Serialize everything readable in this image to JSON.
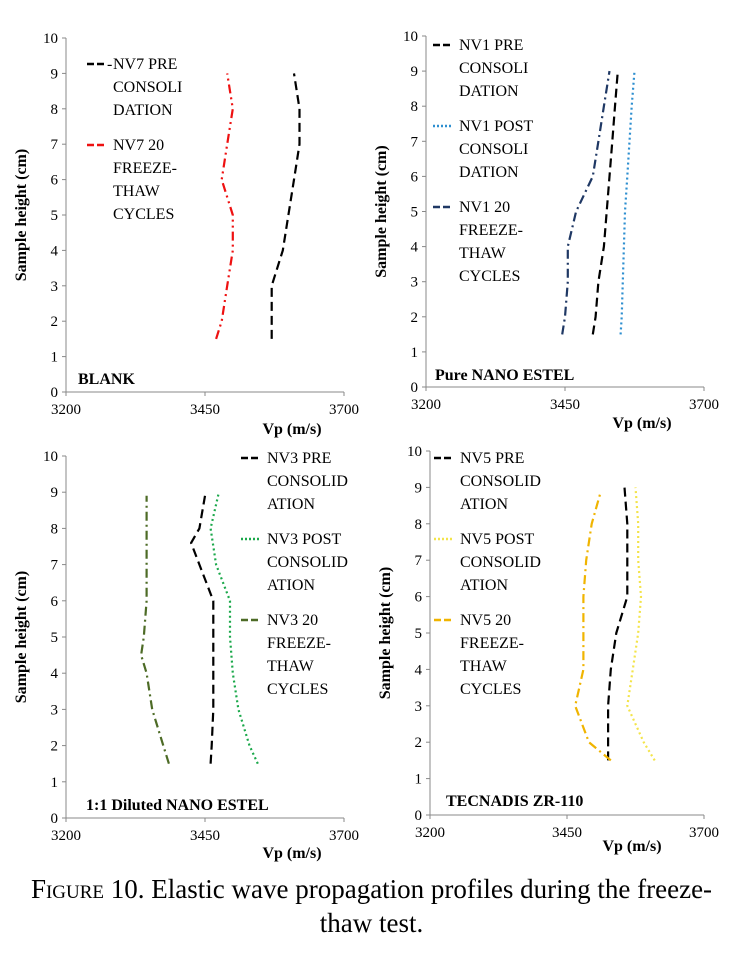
{
  "caption": {
    "figure_label": "Figure 10.",
    "line1_text": "Elastic wave propagation profiles during the freeze-",
    "line2_text": "thaw test."
  },
  "chart_data": [
    {
      "type": "line",
      "panel_label": "BLANK",
      "xlabel": "Vp (m/s)",
      "ylabel": "Sample height (cm)",
      "xlim": [
        3200,
        3700
      ],
      "xticks": [
        "3200",
        "3450",
        "3700"
      ],
      "ylim": [
        0,
        10
      ],
      "yticks": [
        "0",
        "1",
        "2",
        "3",
        "4",
        "5",
        "6",
        "7",
        "8",
        "9",
        "10"
      ],
      "legend_position": "top-left",
      "series": [
        {
          "name_lines": [
            "NV7 PRE",
            "CONSOLI",
            "DATION"
          ],
          "legend_prefix": "-",
          "color": "#000000",
          "dash": "9,5",
          "y": [
            1.5,
            2,
            3,
            4,
            5,
            6,
            7,
            8,
            9
          ],
          "x": [
            3570,
            3570,
            3570,
            3590,
            3600,
            3610,
            3620,
            3620,
            3610
          ]
        },
        {
          "name_lines": [
            "NV7 20",
            "FREEZE-",
            "THAW",
            "CYCLES"
          ],
          "color": "#ee1111",
          "dash": "9,4,2,4,2,4",
          "y": [
            1.5,
            2,
            3,
            4,
            5,
            6,
            7,
            8,
            9
          ],
          "x": [
            3470,
            3480,
            3490,
            3500,
            3500,
            3480,
            3490,
            3500,
            3490
          ]
        }
      ]
    },
    {
      "type": "line",
      "panel_label": "Pure NANO ESTEL",
      "xlabel": "Vp (m/s)",
      "ylabel": "Sample height (cm)",
      "xlim": [
        3200,
        3700
      ],
      "xticks": [
        "3200",
        "3450",
        "3700"
      ],
      "ylim": [
        0,
        10
      ],
      "yticks": [
        "0",
        "1",
        "2",
        "3",
        "4",
        "5",
        "6",
        "7",
        "8",
        "9",
        "10"
      ],
      "legend_position": "top-left",
      "series": [
        {
          "name_lines": [
            "NV1 PRE",
            "CONSOLI",
            "DATION"
          ],
          "color": "#000000",
          "dash": "9,5",
          "y": [
            1.5,
            2,
            3,
            4,
            5,
            6,
            7,
            8,
            9
          ],
          "x": [
            3500,
            3505,
            3510,
            3520,
            3525,
            3530,
            3535,
            3540,
            3545
          ]
        },
        {
          "name_lines": [
            "NV1 POST",
            "CONSOLI",
            "DATION"
          ],
          "color": "#2e8fd0",
          "dash": "2,3",
          "y": [
            1.5,
            2,
            3,
            4,
            5,
            6,
            7,
            8,
            9
          ],
          "x": [
            3550,
            3552,
            3554,
            3556,
            3558,
            3562,
            3566,
            3570,
            3575
          ]
        },
        {
          "name_lines": [
            "NV1 20",
            "FREEZE-",
            "THAW",
            "CYCLES"
          ],
          "color": "#1f3864",
          "dash": "9,4,2,4",
          "y": [
            1.5,
            2,
            3,
            4,
            5,
            6,
            7,
            8,
            9
          ],
          "x": [
            3445,
            3450,
            3455,
            3455,
            3470,
            3500,
            3510,
            3520,
            3530
          ]
        }
      ]
    },
    {
      "type": "line",
      "panel_label": "1:1 Diluted NANO ESTEL",
      "xlabel": "Vp (m/s)",
      "ylabel": "Sample height (cm)",
      "xlim": [
        3200,
        3700
      ],
      "xticks": [
        "3200",
        "3450",
        "3700"
      ],
      "ylim": [
        0,
        10
      ],
      "yticks": [
        "0",
        "1",
        "2",
        "3",
        "4",
        "5",
        "6",
        "7",
        "8",
        "9",
        "10"
      ],
      "legend_position": "top-right",
      "series": [
        {
          "name_lines": [
            "NV3 PRE",
            "CONSOLID",
            "ATION"
          ],
          "color": "#000000",
          "dash": "9,5",
          "y": [
            1.5,
            2,
            3,
            4,
            5,
            6,
            7,
            7.6,
            8,
            8.9
          ],
          "x": [
            3460,
            3462,
            3465,
            3465,
            3465,
            3465,
            3440,
            3425,
            3440,
            3450
          ]
        },
        {
          "name_lines": [
            "NV3 POST",
            "CONSOLID",
            "ATION"
          ],
          "color": "#1aa84a",
          "dash": "2,3",
          "y": [
            1.5,
            2,
            3,
            4,
            5,
            6,
            7,
            8,
            9
          ],
          "x": [
            3545,
            3530,
            3510,
            3500,
            3495,
            3495,
            3470,
            3460,
            3475
          ]
        },
        {
          "name_lines": [
            "NV3 20",
            "FREEZE-",
            "THAW",
            "CYCLES"
          ],
          "color": "#4d6b26",
          "dash": "9,4,2,4",
          "y": [
            1.5,
            2,
            3,
            4,
            4.5,
            5,
            6,
            7,
            8,
            8.9
          ],
          "x": [
            3385,
            3375,
            3355,
            3345,
            3335,
            3340,
            3345,
            3345,
            3345,
            3345
          ]
        }
      ]
    },
    {
      "type": "line",
      "panel_label": "TECNADIS ZR-110",
      "xlabel": "Vp (m/s)",
      "ylabel": "Sample height (cm)",
      "xlim": [
        3200,
        3700
      ],
      "xticks": [
        "3200",
        "3450",
        "3700"
      ],
      "ylim": [
        0,
        10
      ],
      "yticks": [
        "0",
        "1",
        "2",
        "3",
        "4",
        "5",
        "6",
        "7",
        "8",
        "9",
        "10"
      ],
      "legend_position": "top-left",
      "series": [
        {
          "name_lines": [
            "NV5 PRE",
            "CONSOLID",
            "ATION"
          ],
          "color": "#000000",
          "dash": "9,5",
          "y": [
            1.5,
            2,
            3,
            4,
            5,
            6,
            7,
            8,
            9
          ],
          "x": [
            3525,
            3525,
            3525,
            3530,
            3540,
            3560,
            3560,
            3560,
            3555
          ]
        },
        {
          "name_lines": [
            "NV5 POST",
            "CONSOLID",
            "ATION"
          ],
          "color": "#f3e44a",
          "dash": "2,3",
          "y": [
            1.5,
            2,
            3,
            4,
            5,
            6,
            7,
            8,
            9
          ],
          "x": [
            3610,
            3590,
            3560,
            3570,
            3580,
            3585,
            3580,
            3580,
            3575
          ]
        },
        {
          "name_lines": [
            "NV5 20",
            "FREEZE-",
            "THAW",
            "CYCLES"
          ],
          "color": "#f0b400",
          "dash": "9,4,2,4",
          "y": [
            1.5,
            2,
            3,
            4,
            5,
            6,
            7,
            8,
            8.8
          ],
          "x": [
            3530,
            3490,
            3465,
            3480,
            3480,
            3480,
            3485,
            3495,
            3510
          ]
        }
      ]
    }
  ]
}
